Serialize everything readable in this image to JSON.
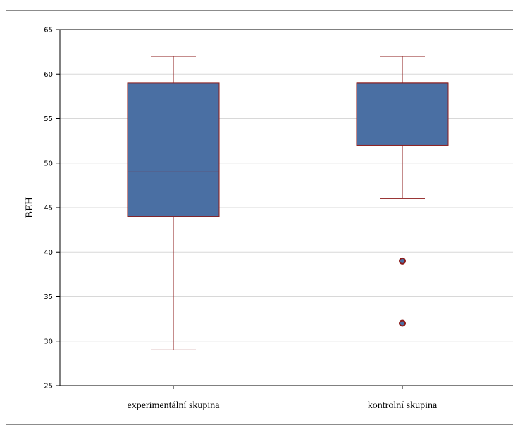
{
  "chart_data": {
    "type": "box",
    "title": "",
    "xlabel": "",
    "ylabel": "BEH",
    "ylim": [
      25,
      65
    ],
    "yticks": [
      25,
      30,
      35,
      40,
      45,
      50,
      55,
      60,
      65
    ],
    "grid": true,
    "categories": [
      "experimentální skupina",
      "kontrolní skupina"
    ],
    "boxes": [
      {
        "category": "experimentální skupina",
        "whisker_low": 29,
        "q1": 44,
        "median": 49,
        "q3": 59,
        "whisker_high": 62,
        "outliers": []
      },
      {
        "category": "kontrolní skupina",
        "whisker_low": 46,
        "q1": 52,
        "median": 59,
        "q3": 59,
        "whisker_high": 62,
        "outliers": [
          39,
          32
        ]
      }
    ]
  },
  "colors": {
    "box_fill": "#4a6fa3",
    "box_stroke": "#8b1a1a",
    "whisker": "#8b1a1a",
    "outlier_fill": "#4a6fa3",
    "outlier_stroke": "#8b1a1a",
    "grid": "#d8d8d8",
    "axis": "#000000"
  }
}
